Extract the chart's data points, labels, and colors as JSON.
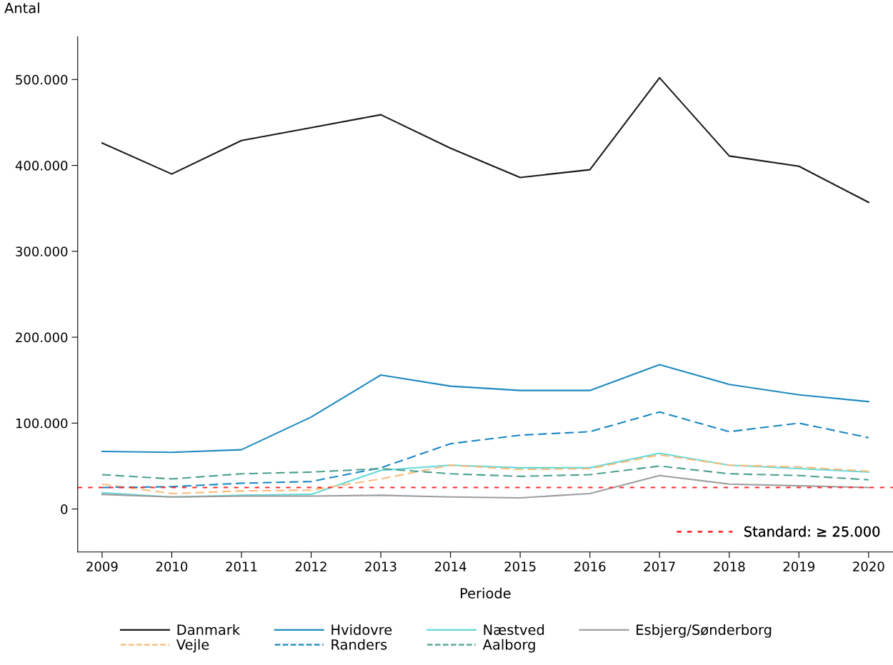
{
  "chart_data": {
    "type": "line",
    "ylabel": "Antal",
    "xlabel": "Periode",
    "x": [
      2009,
      2010,
      2011,
      2012,
      2013,
      2014,
      2015,
      2016,
      2017,
      2018,
      2019,
      2020
    ],
    "xlim": [
      2008.65,
      2020.35
    ],
    "xticks": [
      2009,
      2010,
      2011,
      2012,
      2013,
      2014,
      2015,
      2016,
      2017,
      2018,
      2019,
      2020
    ],
    "ylim": [
      -50000,
      550000
    ],
    "yticks": [
      {
        "value": 0,
        "label": "0"
      },
      {
        "value": 100000,
        "label": "100.000"
      },
      {
        "value": 200000,
        "label": "200.000"
      },
      {
        "value": 300000,
        "label": "300.000"
      },
      {
        "value": 400000,
        "label": "400.000"
      },
      {
        "value": 500000,
        "label": "500.000"
      }
    ],
    "grid": false,
    "legend": "bottom",
    "marker": "none",
    "series": [
      {
        "name": "Danmark",
        "color": "#1a1a1a",
        "line_style": "solid",
        "values": [
          426000,
          390000,
          429000,
          444000,
          459000,
          420000,
          386000,
          395000,
          502000,
          411000,
          399000,
          357000
        ]
      },
      {
        "name": "Hvidovre",
        "color": "#1f8ac0",
        "line_style": "solid",
        "values": [
          67000,
          66000,
          69000,
          107000,
          156000,
          143000,
          138000,
          138000,
          168000,
          145000,
          133000,
          125000
        ]
      },
      {
        "name": "Næstved",
        "color": "#66d9d9",
        "line_style": "solid",
        "values": [
          19000,
          14000,
          16000,
          17000,
          45000,
          51000,
          48000,
          48000,
          65000,
          51000,
          47000,
          43000
        ]
      },
      {
        "name": "Esbjerg/Sønderborg",
        "color": "#9e9e9e",
        "line_style": "solid",
        "values": [
          17000,
          14000,
          15000,
          15000,
          16000,
          14000,
          13000,
          18000,
          39000,
          29000,
          27000,
          25000
        ]
      },
      {
        "name": "Vejle",
        "color": "#f8bb7a",
        "line_style": "dashed",
        "values": [
          29000,
          18000,
          21000,
          22000,
          35000,
          51000,
          46000,
          47000,
          63000,
          51000,
          49000,
          44000
        ]
      },
      {
        "name": "Randers",
        "color": "#1a87c4",
        "line_style": "dashed",
        "values": [
          25000,
          26000,
          30000,
          32000,
          48000,
          76000,
          86000,
          90000,
          113000,
          90000,
          100000,
          83000
        ]
      },
      {
        "name": "Aalborg",
        "color": "#4aa08f",
        "line_style": "dashed",
        "values": [
          40000,
          35000,
          41000,
          43000,
          47000,
          41000,
          38000,
          40000,
          50000,
          41000,
          39000,
          34000
        ]
      }
    ],
    "ref_lines": [
      {
        "axis": "y",
        "value": 25000,
        "label": "Standard: ≥ 25.000",
        "color": "#ff2a2a",
        "line_style": "dotted"
      }
    ]
  }
}
